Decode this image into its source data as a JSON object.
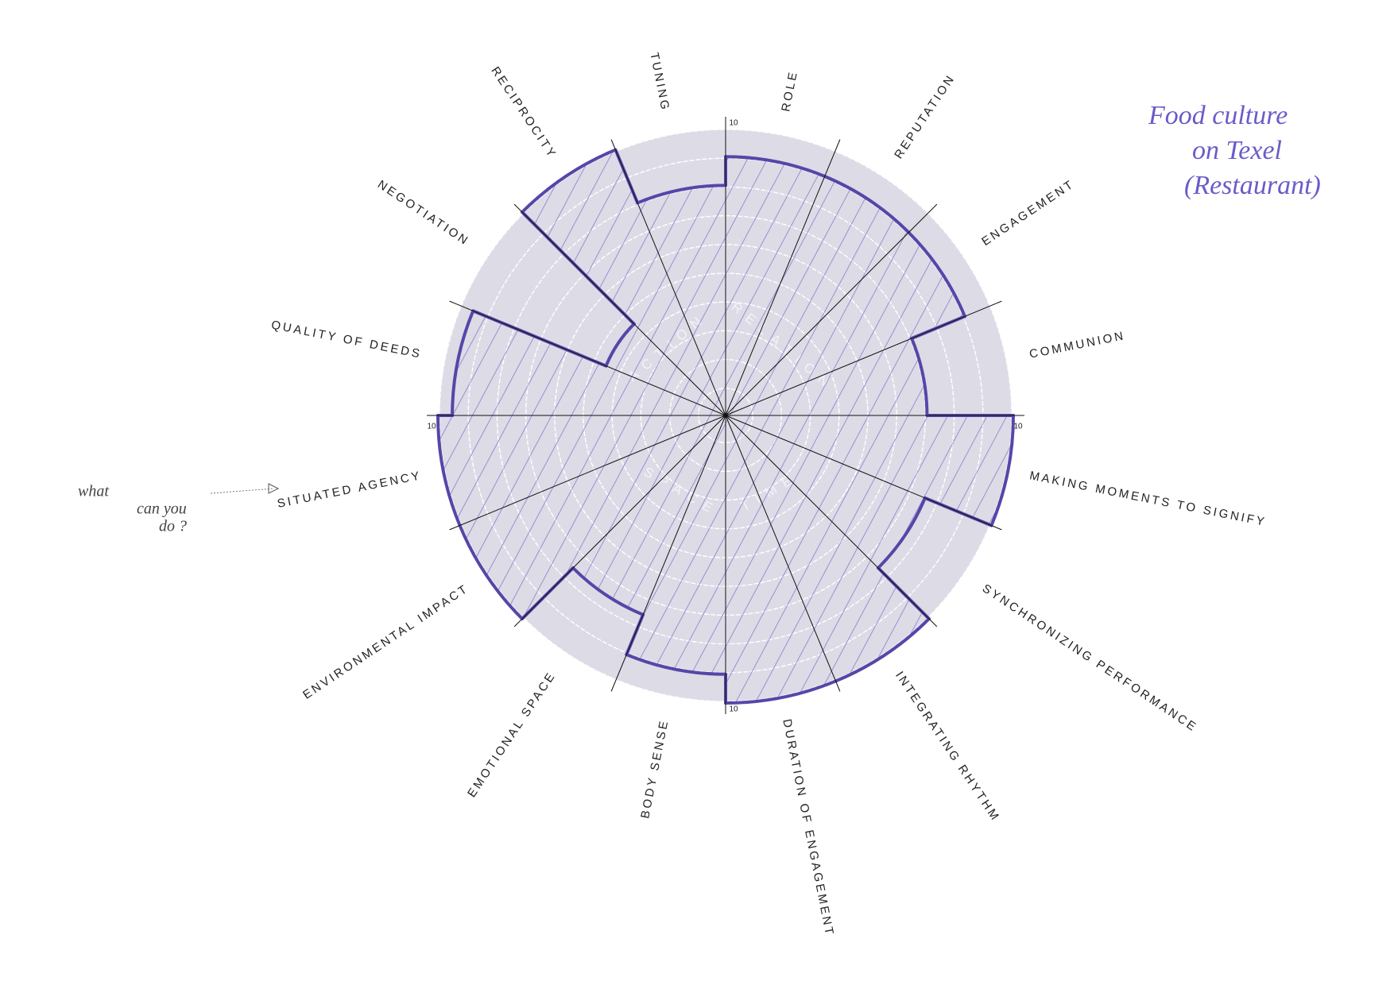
{
  "chart_data": {
    "type": "polar-bar",
    "categories": [
      "ROLE",
      "REPUTATION",
      "ENGAGEMENT",
      "COMMUNION",
      "MAKING MOMENTS TO SIGNIFY",
      "SYNCHRONIZING PERFORMANCE",
      "INTEGRATING RHYTHM",
      "DURATION OF ENGAGEMENT",
      "BODY SENSE",
      "EMOTIONAL SPACE",
      "ENVIRONMENTAL IMPACT",
      "SITUATED AGENCY",
      "QUALITY OF DEEDS",
      "NEGOTIATION",
      "RECIPROCITY",
      "TUNING"
    ],
    "values": [
      9,
      9,
      9,
      7,
      10,
      7.5,
      10,
      10,
      9,
      7.5,
      10,
      10,
      9.5,
      4.5,
      10,
      8
    ],
    "color": "#5646a8",
    "rlim": [
      0,
      10
    ],
    "rticks": [
      1,
      2,
      3,
      4,
      5,
      6,
      7,
      8,
      9,
      10
    ],
    "inner_labels": [
      "ACTION",
      "RELATION",
      "TIME",
      "SPACE"
    ],
    "note": [
      "Food culture",
      "on Texel",
      "(Restaurant)"
    ],
    "question": [
      "what",
      "can you",
      "do ?"
    ]
  }
}
